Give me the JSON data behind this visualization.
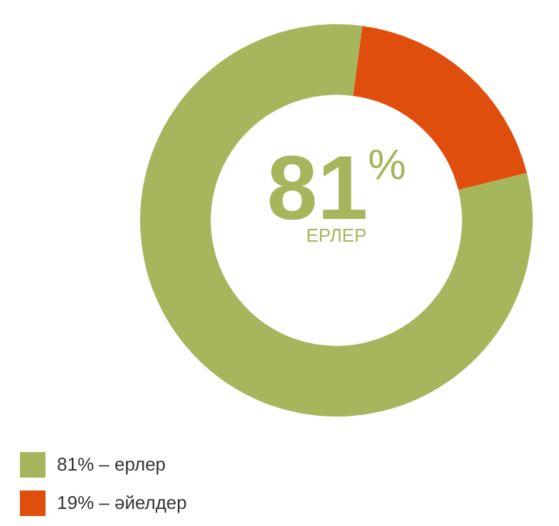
{
  "chart_data": {
    "type": "donut",
    "categories": [
      "81% – ерлер",
      "19% – әйелдер"
    ],
    "values": [
      81,
      19
    ],
    "colors": [
      "#a5b65c",
      "#e04e0e"
    ],
    "annotations": [
      "81$^{%}$",
      "ЕРЛЕР"
    ],
    "legend": "bottom"
  }
}
